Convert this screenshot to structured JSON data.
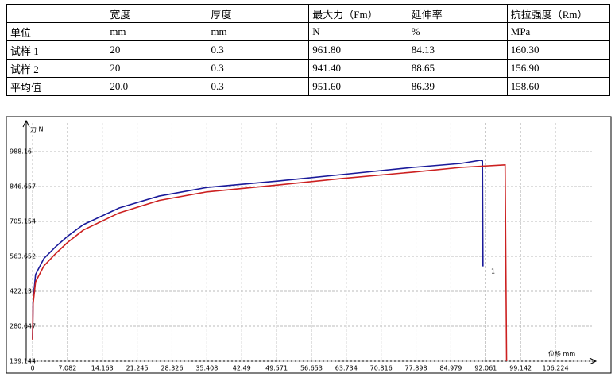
{
  "table": {
    "rows": [
      [
        "",
        "宽度",
        "厚度",
        "最大力（Fm）",
        "延伸率",
        "抗拉强度（Rm）"
      ],
      [
        "单位",
        "mm",
        "mm",
        "N",
        "%",
        "MPa"
      ],
      [
        "试样 1",
        "20",
        "0.3",
        "961.80",
        "84.13",
        "160.30"
      ],
      [
        "试样 2",
        "20",
        "0.3",
        "941.40",
        "88.65",
        "156.90"
      ],
      [
        "平均值",
        "20.0",
        "0.3",
        "951.60",
        "86.39",
        "158.60"
      ]
    ]
  },
  "chart_data": {
    "type": "line",
    "y_label": "力 N",
    "x_label": "位移 mm",
    "annotation": "1",
    "xlim": [
      0,
      113
    ],
    "ylim": [
      139.144,
      1088
    ],
    "xticks": [
      0,
      7.082,
      14.163,
      21.245,
      28.326,
      35.408,
      42.49,
      49.571,
      56.653,
      63.734,
      70.816,
      77.898,
      84.979,
      92.061,
      99.142,
      106.224
    ],
    "yticks": [
      139.144,
      280.647,
      422.139,
      563.652,
      705.154,
      846.657,
      988.16
    ],
    "grid": true,
    "series": [
      {
        "color": "#1a1a9a",
        "x": [
          0,
          0.1,
          0.6,
          2.3,
          4.7,
          7.1,
          10.3,
          17.6,
          25.7,
          35.4,
          49.9,
          62.8,
          77.3,
          87,
          91,
          91.4,
          91.5
        ],
        "values": [
          230,
          380,
          490,
          555,
          603,
          645,
          692,
          760,
          808,
          843,
          869,
          895,
          924,
          940,
          953,
          950,
          523
        ]
      },
      {
        "color": "#cc2020",
        "x": [
          0,
          0.1,
          0.6,
          2.3,
          4.7,
          7.1,
          10.3,
          17.6,
          25.7,
          35.4,
          49.9,
          62.8,
          77.3,
          87,
          96,
          96.3
        ],
        "values": [
          225,
          370,
          460,
          525,
          575,
          620,
          670,
          740,
          790,
          825,
          853,
          879,
          905,
          924,
          934,
          139.144
        ]
      }
    ]
  }
}
